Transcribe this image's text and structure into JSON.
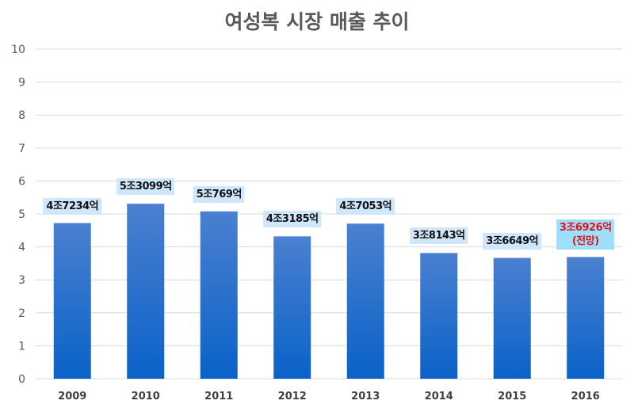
{
  "chart_data": {
    "type": "bar",
    "title": "여성복 시장 매출 추이",
    "categories": [
      "2009",
      "2010",
      "2011",
      "2012",
      "2013",
      "2014",
      "2015",
      "2016"
    ],
    "values": [
      4.7234,
      5.3099,
      5.0769,
      4.3185,
      4.7053,
      3.8143,
      3.6649,
      3.6926
    ],
    "data_labels": [
      "4조7234억",
      "5조3099억",
      "5조769억",
      "4조3185억",
      "4조7053억",
      "3조8143억",
      "3조6649억",
      "3조6926억"
    ],
    "forecast_note": "(전망)",
    "ylim": [
      0,
      10
    ],
    "yticks": [
      "0",
      "1",
      "2",
      "3",
      "4",
      "5",
      "6",
      "7",
      "8",
      "9",
      "10"
    ],
    "grid": true,
    "xlabel": "",
    "ylabel": "",
    "colors": {
      "bar_top": "#4a80d0",
      "bar_bottom": "#0a62c8",
      "label_bg": "#cfe6fb",
      "forecast_bg": "#9ee0fb",
      "forecast_text": "#e0141e"
    }
  }
}
